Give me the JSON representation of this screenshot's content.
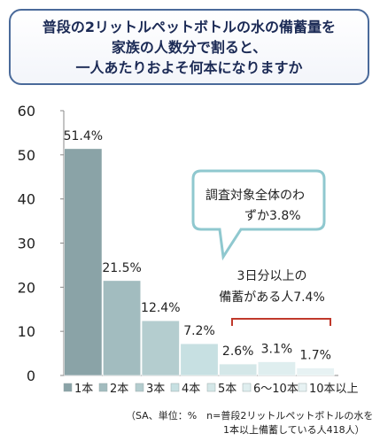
{
  "title": {
    "lines": [
      "普段の2リットルペットボトルの水の備蓄量を",
      "家族の人数分で割ると、",
      "一人あたりおよそ何本になりますか"
    ]
  },
  "callout": {
    "lines": [
      "調査対象全体のわ",
      "ずか3.8%"
    ]
  },
  "bracket_note": {
    "lines": [
      "3日分以上の",
      "備蓄がある人7.4%"
    ]
  },
  "footnote": {
    "lines": [
      "（SA、単位：%　n=普段2リットルペットボトルの水を",
      "1本以上備蓄している人418人）"
    ]
  },
  "colors": {
    "bar_1": "#8aa3a7",
    "bar_2": "#a2bcbf",
    "bar_3": "#b4cdcf",
    "bar_4": "#c7e0e2",
    "bar_5": "#d4e7e8",
    "bar_6": "#dfeeef",
    "bar_7": "#e7f2f3",
    "bracket": "#c0392b",
    "callout_border": "#8fc8cf"
  },
  "chart_data": {
    "type": "bar",
    "categories": [
      "1本",
      "2本",
      "3本",
      "4本",
      "5本",
      "6～10本",
      "10本以上"
    ],
    "values": [
      51.4,
      21.5,
      12.4,
      7.2,
      2.6,
      3.1,
      1.7
    ],
    "value_labels": [
      "51.4%",
      "21.5%",
      "12.4%",
      "7.2%",
      "2.6%",
      "3.1%",
      "1.7%"
    ],
    "ylim": [
      0,
      60
    ],
    "yticks": [
      0,
      10,
      20,
      30,
      40,
      50,
      60
    ],
    "legend": "bottom",
    "grid": false
  }
}
